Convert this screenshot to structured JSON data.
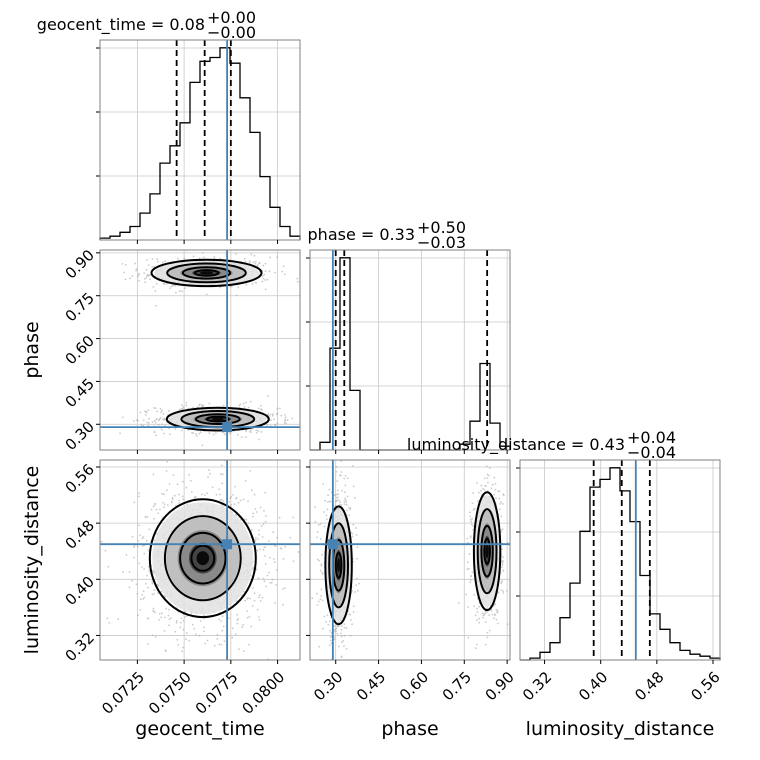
{
  "chart_data": {
    "type": "corner",
    "parameters": [
      {
        "key": "geocent_time",
        "label": "geocent_time",
        "title": "geocent_time = 0.08$^{+0.00}_{-0.00}$",
        "title_main": "geocent_time = 0.08",
        "title_upper": "+0.00",
        "title_lower": "−0.00",
        "range": [
          0.0705,
          0.0812
        ],
        "ticks": [
          0.0725,
          0.075,
          0.0775,
          0.08
        ],
        "tick_labels": [
          "0.0725",
          "0.0750",
          "0.0775",
          "0.0800"
        ],
        "truth": 0.0773,
        "quantiles": [
          0.0746,
          0.0761,
          0.0775
        ],
        "histogram": {
          "edges_start": 0.0705,
          "bin_width": 0.000535,
          "counts": [
            0.01,
            0.02,
            0.04,
            0.07,
            0.14,
            0.24,
            0.4,
            0.49,
            0.61,
            0.82,
            0.93,
            0.95,
            1.0,
            0.92,
            0.74,
            0.56,
            0.33,
            0.17,
            0.07,
            0.02
          ]
        }
      },
      {
        "key": "phase",
        "label": "phase",
        "title": "phase = 0.33$^{+0.50}_{-0.03}$",
        "title_main": "phase = 0.33",
        "title_upper": "+0.50",
        "title_lower": "−0.03",
        "range": [
          0.21,
          0.91
        ],
        "ticks": [
          0.3,
          0.45,
          0.6,
          0.75,
          0.9
        ],
        "tick_labels": [
          "0.30",
          "0.45",
          "0.60",
          "0.75",
          "0.90"
        ],
        "truth": 0.29,
        "quantiles": [
          0.3,
          0.33,
          0.83
        ],
        "histogram": {
          "edges_start": 0.21,
          "bin_width": 0.035,
          "counts": [
            0,
            0.04,
            0.53,
            1.0,
            0.31,
            0,
            0,
            0,
            0,
            0,
            0,
            0,
            0,
            0,
            0,
            0.03,
            0.15,
            0.45,
            0.14,
            0.02
          ]
        }
      },
      {
        "key": "luminosity_distance",
        "label": "luminosity_distance",
        "title": "luminosity_distance = 0.43$^{+0.04}_{-0.04}$",
        "title_main": "luminosity_distance = 0.43",
        "title_upper": "+0.04",
        "title_lower": "−0.04",
        "range": [
          0.285,
          0.57
        ],
        "ticks": [
          0.32,
          0.4,
          0.48,
          0.56
        ],
        "tick_labels": [
          "0.32",
          "0.40",
          "0.48",
          "0.56"
        ],
        "truth": 0.45,
        "quantiles": [
          0.39,
          0.43,
          0.47
        ],
        "histogram": {
          "edges_start": 0.285,
          "bin_width": 0.01425,
          "counts": [
            0,
            0.01,
            0.04,
            0.09,
            0.22,
            0.4,
            0.67,
            0.9,
            0.94,
            1.0,
            0.88,
            0.72,
            0.44,
            0.24,
            0.16,
            0.09,
            0.05,
            0.03,
            0.02,
            0.01
          ]
        }
      }
    ],
    "pairs": [
      {
        "x": "geocent_time",
        "y": "phase",
        "modes": [
          {
            "center": [
              0.0762,
              0.83
            ],
            "sigma": [
              0.0014,
              0.022
            ],
            "weight": 0.42
          },
          {
            "center": [
              0.0768,
              0.318
            ],
            "sigma": [
              0.0013,
              0.019
            ],
            "weight": 0.58
          }
        ]
      },
      {
        "x": "geocent_time",
        "y": "luminosity_distance",
        "modes": [
          {
            "center": [
              0.076,
              0.43
            ],
            "sigma": [
              0.00135,
              0.04
            ],
            "weight": 1.0
          }
        ]
      },
      {
        "x": "phase",
        "y": "luminosity_distance",
        "modes": [
          {
            "center": [
              0.31,
              0.42
            ],
            "sigma": [
              0.022,
              0.04
            ],
            "weight": 0.58
          },
          {
            "center": [
              0.83,
              0.44
            ],
            "sigma": [
              0.022,
              0.04
            ],
            "weight": 0.42
          }
        ]
      }
    ],
    "grid": true,
    "colors": {
      "truth": "#4682b4",
      "histogram": "#000000",
      "scatter": "#a0a0a0"
    }
  }
}
